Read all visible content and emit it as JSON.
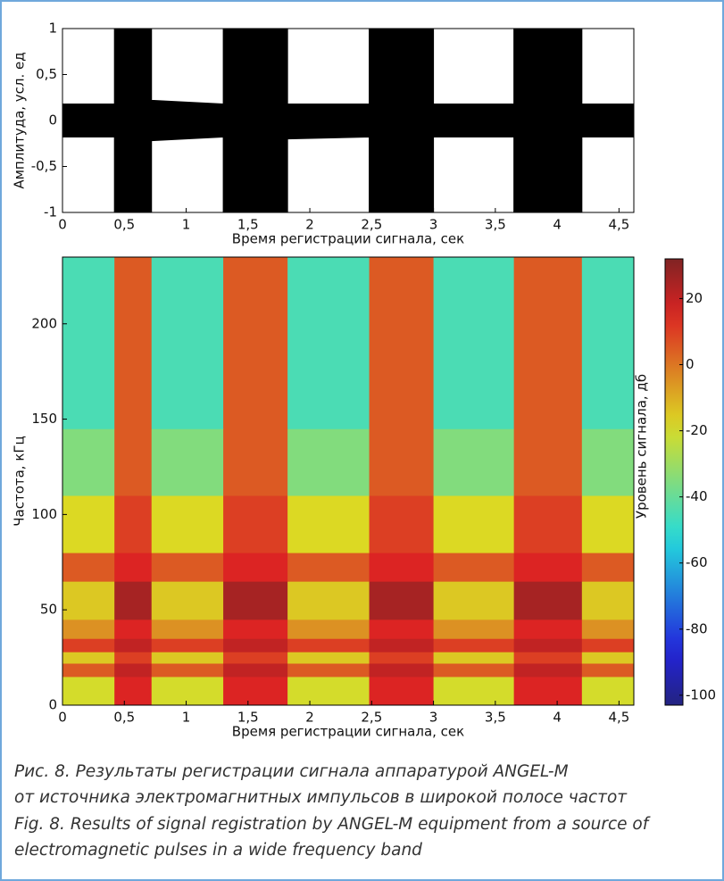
{
  "chart_data": [
    {
      "type": "envelope",
      "xlabel": "Время регистрации сигнала, сек",
      "ylabel": "Амплитуда, усл. ед",
      "x": [
        0,
        0.42,
        0.42,
        0.72,
        0.72,
        1.3,
        1.3,
        1.82,
        1.82,
        2.48,
        2.48,
        3.0,
        3.0,
        3.65,
        3.65,
        4.2,
        4.2,
        4.62
      ],
      "series": [
        {
          "color": "#000000",
          "values": [
            0.18,
            0.18,
            1,
            1,
            0.22,
            0.18,
            1,
            1,
            0.18,
            0.18,
            1,
            1,
            0.18,
            0.18,
            1,
            1,
            0.18,
            0.18
          ]
        },
        {
          "color": "#000000",
          "values": [
            -0.18,
            -0.18,
            -1,
            -1,
            -0.22,
            -0.18,
            -1,
            -1,
            -0.2,
            -0.18,
            -1,
            -1,
            -0.18,
            -0.18,
            -1,
            -1,
            -0.18,
            -0.18
          ]
        }
      ],
      "xlim": [
        0,
        4.62
      ],
      "ylim": [
        -1,
        1
      ],
      "xticks": [
        0,
        {
          "value": 0.5,
          "label": "0,5"
        },
        1,
        {
          "value": 1.5,
          "label": "1,5"
        },
        2,
        {
          "value": 2.5,
          "label": "2,5"
        },
        3,
        {
          "value": 3.5,
          "label": "3,5"
        },
        4,
        {
          "value": 4.5,
          "label": "4,5"
        }
      ],
      "yticks": [
        -1,
        {
          "value": -0.5,
          "label": "-0,5"
        },
        0,
        {
          "value": 0.5,
          "label": "0,5"
        },
        1
      ]
    },
    {
      "type": "heatmap",
      "xlabel": "Время регистрации сигнала, сек",
      "ylabel": "Частота, кГц",
      "colorbar_label": "Уровень сигнала, дб",
      "x_edges": [
        0,
        0.42,
        0.72,
        1.3,
        1.82,
        2.48,
        3.0,
        3.65,
        4.2,
        4.62
      ],
      "y_edges": [
        0,
        15,
        22,
        28,
        35,
        45,
        65,
        80,
        110,
        145,
        235
      ],
      "z": [
        [
          -20,
          15,
          -20,
          15,
          -20,
          15,
          -20,
          15,
          -20
        ],
        [
          5,
          20,
          5,
          20,
          5,
          20,
          5,
          20,
          5
        ],
        [
          -15,
          10,
          -15,
          10,
          -15,
          10,
          -15,
          10,
          -15
        ],
        [
          10,
          20,
          10,
          20,
          10,
          20,
          10,
          20,
          10
        ],
        [
          -5,
          15,
          -5,
          15,
          -5,
          15,
          -5,
          15,
          -5
        ],
        [
          -15,
          25,
          -15,
          25,
          -15,
          25,
          -15,
          25,
          -15
        ],
        [
          5,
          15,
          5,
          15,
          5,
          15,
          5,
          15,
          5
        ],
        [
          -18,
          10,
          -18,
          10,
          -18,
          10,
          -18,
          10,
          -18
        ],
        [
          -35,
          5,
          -35,
          5,
          -35,
          5,
          -35,
          5,
          -35
        ],
        [
          -45,
          5,
          -45,
          5,
          -45,
          5,
          -45,
          5,
          -45
        ]
      ],
      "xlim": [
        0,
        4.62
      ],
      "ylim": [
        0,
        235
      ],
      "clim": [
        -103,
        32
      ],
      "xticks": [
        0,
        {
          "value": 0.5,
          "label": "0,5"
        },
        1,
        {
          "value": 1.5,
          "label": "1,5"
        },
        2,
        {
          "value": 2.5,
          "label": "2,5"
        },
        3,
        {
          "value": 3.5,
          "label": "3,5"
        },
        4,
        {
          "value": 4.5,
          "label": "4,5"
        }
      ],
      "yticks": [
        0,
        50,
        100,
        150,
        200
      ],
      "cticks": [
        -100,
        -80,
        -60,
        -40,
        -20,
        0,
        20
      ]
    }
  ],
  "caption": {
    "ru": [
      "Рис. 8. Результаты регистрации сигнала аппаратурой ANGEL-M",
      "от источника электромагнитных импульсов в широкой полосе частот"
    ],
    "en": [
      "Fig. 8. Results of signal registration by ANGEL-M equipment from a source of",
      "electromagnetic pulses in a wide frequency band"
    ]
  }
}
